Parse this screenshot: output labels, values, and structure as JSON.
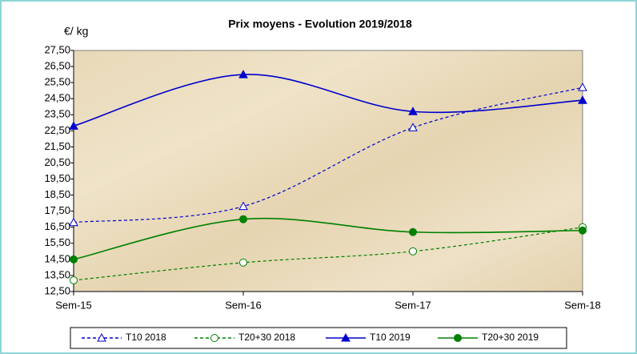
{
  "chart_data": {
    "type": "line",
    "title": "Prix moyens - Evolution 2019/2018",
    "y_label": "€/ kg",
    "categories": [
      "Sem-15",
      "Sem-16",
      "Sem-17",
      "Sem-18"
    ],
    "series": [
      {
        "name": "T10 2018",
        "color": "#0000cc",
        "dashed": true,
        "marker": "triangle",
        "filled": false,
        "values": [
          16.8,
          17.8,
          22.7,
          25.2
        ]
      },
      {
        "name": "T20+30 2018",
        "color": "#008000",
        "dashed": true,
        "marker": "circle",
        "filled": false,
        "values": [
          13.2,
          14.3,
          15.0,
          16.5
        ]
      },
      {
        "name": "T10 2019",
        "color": "#0000cc",
        "dashed": false,
        "marker": "triangle",
        "filled": true,
        "values": [
          22.8,
          26.0,
          23.7,
          24.4
        ]
      },
      {
        "name": "T20+30 2019",
        "color": "#008000",
        "dashed": false,
        "marker": "circle",
        "filled": true,
        "values": [
          14.5,
          17.0,
          16.2,
          16.3
        ]
      }
    ],
    "ylim": [
      12.5,
      27.5
    ],
    "yticks": [
      {
        "value": 12.5,
        "label": "12,50"
      },
      {
        "value": 13.5,
        "label": "13,50"
      },
      {
        "value": 14.5,
        "label": "14,50"
      },
      {
        "value": 15.5,
        "label": "15,50"
      },
      {
        "value": 16.5,
        "label": "16,50"
      },
      {
        "value": 17.5,
        "label": "17,50"
      },
      {
        "value": 18.5,
        "label": "18,50"
      },
      {
        "value": 19.5,
        "label": "19,50"
      },
      {
        "value": 20.5,
        "label": "20,50"
      },
      {
        "value": 21.5,
        "label": "21,50"
      },
      {
        "value": 22.5,
        "label": "22,50"
      },
      {
        "value": 23.5,
        "label": "23,50"
      },
      {
        "value": 24.5,
        "label": "24,50"
      },
      {
        "value": 25.5,
        "label": "25,50"
      },
      {
        "value": 26.5,
        "label": "26,50"
      },
      {
        "value": 27.5,
        "label": "27,50"
      }
    ],
    "legend": "bottom",
    "smooth": true
  }
}
